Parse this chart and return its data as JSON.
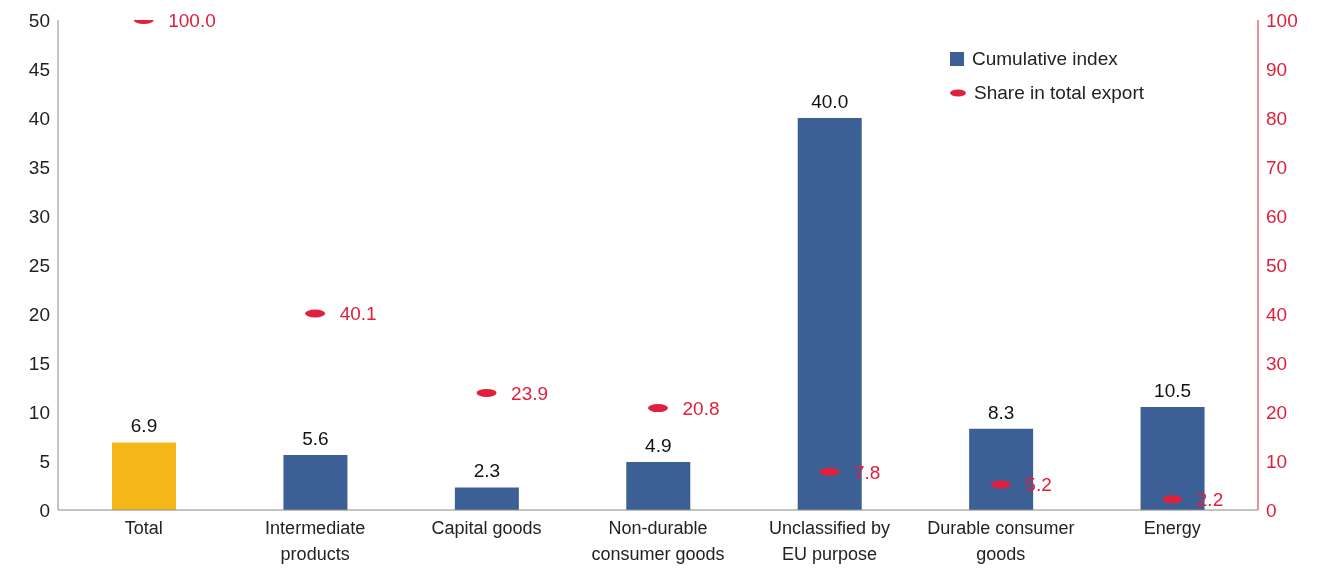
{
  "chart_data": {
    "type": "bar",
    "categories": [
      "Total",
      "Intermediate products",
      "Capital goods",
      "Non-durable consumer goods",
      "Unclassified by EU purpose",
      "Durable consumer goods",
      "Energy"
    ],
    "series": [
      {
        "name": "Cumulative index",
        "color": "#3c5f96",
        "colors": [
          "#f5b617",
          "#3c5f96",
          "#3c5f96",
          "#3c5f96",
          "#3c5f96",
          "#3c5f96",
          "#3c5f96"
        ],
        "values": [
          6.9,
          5.6,
          2.3,
          4.9,
          40.0,
          8.3,
          10.5
        ],
        "value_labels": [
          "6.9",
          "5.6",
          "2.3",
          "4.9",
          "40.0",
          "8.3",
          "10.5"
        ]
      },
      {
        "name": "Share in total export",
        "type": "scatter",
        "axis": "y2",
        "color": "#e0203c",
        "values": [
          100.0,
          40.1,
          23.9,
          20.8,
          7.8,
          5.2,
          2.2
        ],
        "value_labels": [
          "100.0",
          "40.1",
          "23.9",
          "20.8",
          "7.8",
          "5.2",
          "2.2"
        ]
      }
    ],
    "ylim": [
      0,
      50
    ],
    "yticks": [
      0,
      5,
      10,
      15,
      20,
      25,
      30,
      35,
      40,
      45,
      50
    ],
    "y2lim": [
      0,
      100
    ],
    "y2ticks": [
      0,
      10,
      20,
      30,
      40,
      50,
      60,
      70,
      80,
      90,
      100
    ],
    "legend": "top right",
    "grid": false
  }
}
